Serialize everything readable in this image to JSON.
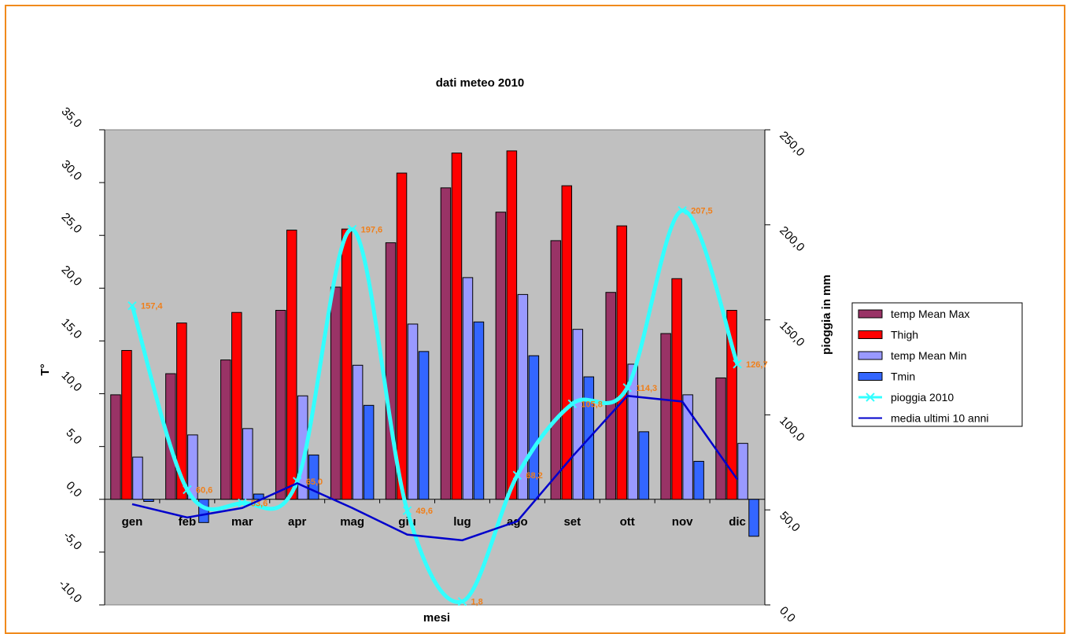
{
  "chart_data": {
    "type": "bar",
    "title": "dati meteo 2010",
    "xlabel": "mesi",
    "ylabel": "T°",
    "y2label": "pioggia in mm",
    "categories": [
      "gen",
      "feb",
      "mar",
      "apr",
      "mag",
      "giu",
      "lug",
      "ago",
      "set",
      "ott",
      "nov",
      "dic"
    ],
    "ylim": [
      -10,
      35
    ],
    "yticks": [
      "-10,0",
      "-5,0",
      "0,0",
      "5,0",
      "10,0",
      "15,0",
      "20,0",
      "25,0",
      "30,0",
      "35,0"
    ],
    "y2lim": [
      0,
      250
    ],
    "y2ticks": [
      "0,0",
      "50,0",
      "100,0",
      "150,0",
      "200,0",
      "250,0"
    ],
    "series": [
      {
        "name": "temp Mean Max",
        "type": "bar",
        "axis": "left",
        "color": "#993366",
        "values": [
          9.9,
          11.9,
          13.2,
          17.9,
          20.1,
          24.3,
          29.5,
          27.2,
          24.5,
          19.6,
          15.7,
          11.5
        ]
      },
      {
        "name": "Thigh",
        "type": "bar",
        "axis": "left",
        "color": "#ff0000",
        "values": [
          14.1,
          16.7,
          17.7,
          25.5,
          25.6,
          30.9,
          32.8,
          33.0,
          29.7,
          25.9,
          20.9,
          17.9
        ]
      },
      {
        "name": "temp Mean Min",
        "type": "bar",
        "axis": "left",
        "color": "#9999ff",
        "values": [
          4.0,
          6.1,
          6.7,
          9.8,
          12.7,
          16.6,
          21.0,
          19.4,
          16.1,
          12.8,
          9.9,
          5.3
        ]
      },
      {
        "name": "Tmin",
        "type": "bar",
        "axis": "left",
        "color": "#3366ff",
        "values": [
          -0.2,
          -2.2,
          0.5,
          4.2,
          8.9,
          14.0,
          16.8,
          13.6,
          11.6,
          6.4,
          3.6,
          -3.5
        ]
      },
      {
        "name": "pioggia 2010",
        "type": "line",
        "axis": "right",
        "color": "#33ffff",
        "smooth": true,
        "marker": "x",
        "values": [
          157.4,
          60.6,
          53.6,
          65.0,
          197.6,
          49.6,
          1.8,
          68.2,
          105.8,
          114.3,
          207.5,
          126.7
        ],
        "labels": [
          "157,4",
          "60,6",
          "53,6",
          "65,0",
          "197,6",
          "49,6",
          "1,8",
          "68,2",
          "105,8",
          "114,3",
          "207,5",
          "126,7"
        ]
      },
      {
        "name": "media ultimi 10 anni",
        "type": "line",
        "axis": "right",
        "color": "#0000cc",
        "values": [
          53.0,
          46.0,
          51.0,
          64.0,
          51.0,
          37.0,
          34.0,
          44.0,
          78.0,
          110.0,
          107.0,
          66.0
        ]
      }
    ],
    "grid": false,
    "plot_background": "#c0c0c0",
    "border_color": "#f08a1c",
    "label_color": "#f07f1a",
    "legend": "right"
  }
}
